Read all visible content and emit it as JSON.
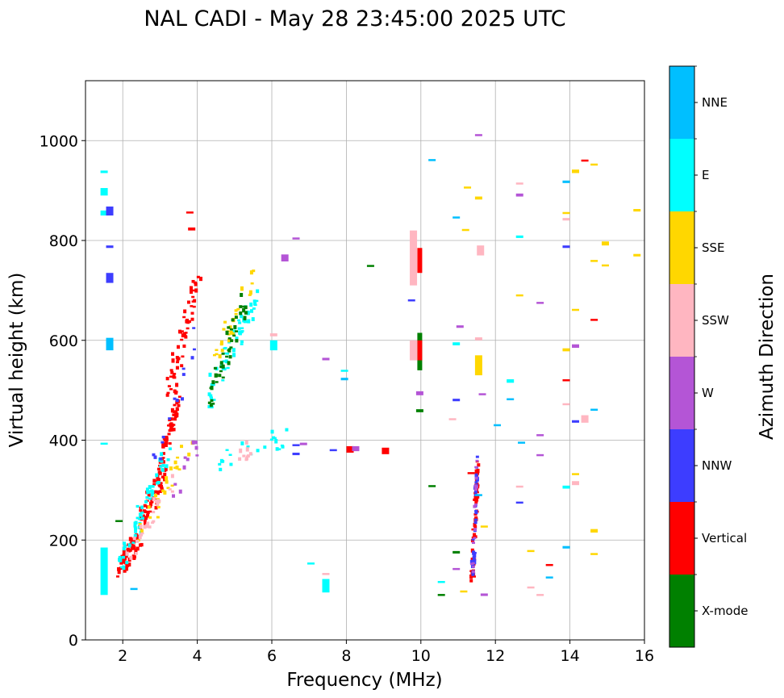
{
  "chart_data": {
    "type": "scatter",
    "title": "NAL CADI - May 28 23:45:00 2025 UTC",
    "xlabel": "Frequency (MHz)",
    "ylabel": "Virtual height (km)",
    "xlim": [
      1,
      16
    ],
    "ylim": [
      0,
      1120
    ],
    "xticks": [
      2,
      4,
      6,
      8,
      10,
      12,
      14,
      16
    ],
    "yticks": [
      0,
      200,
      400,
      600,
      800,
      1000
    ],
    "grid": true,
    "colorbar": {
      "label": "Azimuth Direction",
      "categories": [
        {
          "name": "X-mode",
          "color": "#008000"
        },
        {
          "name": "Vertical",
          "color": "#ff0000"
        },
        {
          "name": "NNW",
          "color": "#3d3dff"
        },
        {
          "name": "W",
          "color": "#b455d6"
        },
        {
          "name": "SSW",
          "color": "#ffb6c1"
        },
        {
          "name": "SSE",
          "color": "#ffd700"
        },
        {
          "name": "E",
          "color": "#00ffff"
        },
        {
          "name": "NNE",
          "color": "#00bfff"
        }
      ]
    },
    "traces": [
      {
        "category": "Vertical",
        "x": [
          1.9,
          2.5
        ],
        "y": [
          125,
          220
        ],
        "count": 60
      },
      {
        "category": "Vertical",
        "x": [
          2.5,
          3.1
        ],
        "y": [
          220,
          340
        ],
        "count": 60
      },
      {
        "category": "Vertical",
        "x": [
          3.0,
          3.5
        ],
        "y": [
          340,
          480
        ],
        "count": 50
      },
      {
        "category": "Vertical",
        "x": [
          3.3,
          4.0
        ],
        "y": [
          480,
          740
        ],
        "count": 60
      },
      {
        "category": "E",
        "x": [
          1.9,
          3.2
        ],
        "y": [
          120,
          390
        ],
        "count": 60
      },
      {
        "category": "E",
        "x": [
          4.2,
          5.6
        ],
        "y": [
          450,
          700
        ],
        "count": 60
      },
      {
        "category": "SSE",
        "x": [
          2.3,
          3.8
        ],
        "y": [
          170,
          400
        ],
        "count": 25
      },
      {
        "category": "SSE",
        "x": [
          4.4,
          5.6
        ],
        "y": [
          540,
          740
        ],
        "count": 25
      },
      {
        "category": "X-mode",
        "x": [
          4.3,
          5.3
        ],
        "y": [
          450,
          700
        ],
        "count": 45
      },
      {
        "category": "SSW",
        "x": [
          2.2,
          3.3
        ],
        "y": [
          150,
          330
        ],
        "count": 25
      },
      {
        "category": "NNW",
        "x": [
          2.8,
          4.0
        ],
        "y": [
          300,
          650
        ],
        "count": 14
      },
      {
        "category": "W",
        "x": [
          3.3,
          4.0
        ],
        "y": [
          270,
          420
        ],
        "count": 10
      },
      {
        "category": "E",
        "x": [
          4.3,
          6.6
        ],
        "y": [
          345,
          410
        ],
        "count": 22
      },
      {
        "category": "SSW",
        "x": [
          5.0,
          5.7
        ],
        "y": [
          360,
          405
        ],
        "count": 10
      },
      {
        "category": "Vertical",
        "x": [
          11.38,
          11.52
        ],
        "y": [
          90,
          370
        ],
        "count": 55
      },
      {
        "category": "NNW",
        "x": [
          11.38,
          11.52
        ],
        "y": [
          90,
          370
        ],
        "count": 30
      },
      {
        "category": "W",
        "x": [
          11.38,
          11.52
        ],
        "y": [
          90,
          370
        ],
        "count": 15
      }
    ],
    "columns": [
      {
        "category": "Vertical",
        "x": 9.97,
        "y": [
          735,
          785
        ]
      },
      {
        "category": "X-mode",
        "x": 9.97,
        "y": [
          540,
          615
        ]
      },
      {
        "category": "Vertical",
        "x": 9.97,
        "y": [
          560,
          600
        ]
      }
    ],
    "points": [
      {
        "category": "E",
        "x": 1.5,
        "y": [
          890,
          905
        ]
      },
      {
        "category": "E",
        "x": 1.5,
        "y": [
          850,
          860
        ]
      },
      {
        "category": "E",
        "x": 1.5,
        "y": [
          935,
          940
        ]
      },
      {
        "category": "NNW",
        "x": 1.65,
        "y": [
          850,
          868
        ]
      },
      {
        "category": "NNW",
        "x": 1.65,
        "y": [
          785,
          790
        ]
      },
      {
        "category": "NNW",
        "x": 1.65,
        "y": [
          715,
          735
        ]
      },
      {
        "category": "NNE",
        "x": 1.65,
        "y": [
          580,
          605
        ]
      },
      {
        "category": "E",
        "x": 1.5,
        "y": [
          90,
          185
        ]
      },
      {
        "category": "Vertical",
        "x": 3.85,
        "y": [
          820,
          826
        ]
      },
      {
        "category": "Vertical",
        "x": 3.8,
        "y": [
          855,
          858
        ]
      },
      {
        "category": "W",
        "x": 6.35,
        "y": [
          758,
          772
        ]
      },
      {
        "category": "W",
        "x": 6.65,
        "y": [
          803,
          806
        ]
      },
      {
        "category": "X-mode",
        "x": 8.65,
        "y": [
          748,
          751
        ]
      },
      {
        "category": "SSW",
        "x": 9.8,
        "y": [
          710,
          820
        ]
      },
      {
        "category": "SSW",
        "x": 9.8,
        "y": [
          560,
          600
        ]
      },
      {
        "category": "X-mode",
        "x": 9.97,
        "y": [
          456,
          462
        ]
      },
      {
        "category": "W",
        "x": 9.97,
        "y": [
          490,
          498
        ]
      },
      {
        "category": "NNE",
        "x": 10.3,
        "y": [
          960,
          963
        ]
      },
      {
        "category": "NNE",
        "x": 10.95,
        "y": [
          845,
          848
        ]
      },
      {
        "category": "SSE",
        "x": 11.2,
        "y": [
          820,
          823
        ]
      },
      {
        "category": "SSE",
        "x": 11.25,
        "y": [
          905,
          908
        ]
      },
      {
        "category": "W",
        "x": 11.55,
        "y": [
          1010,
          1013
        ]
      },
      {
        "category": "SSE",
        "x": 11.55,
        "y": [
          882,
          888
        ]
      },
      {
        "category": "SSW",
        "x": 11.6,
        "y": [
          770,
          790
        ]
      },
      {
        "category": "SSW",
        "x": 11.55,
        "y": [
          600,
          606
        ]
      },
      {
        "category": "SSE",
        "x": 11.55,
        "y": [
          530,
          570
        ]
      },
      {
        "category": "W",
        "x": 11.65,
        "y": [
          490,
          494
        ]
      },
      {
        "category": "NNE",
        "x": 12.05,
        "y": [
          428,
          432
        ]
      },
      {
        "category": "SSW",
        "x": 12.65,
        "y": [
          913,
          916
        ]
      },
      {
        "category": "W",
        "x": 12.65,
        "y": [
          888,
          894
        ]
      },
      {
        "category": "E",
        "x": 12.65,
        "y": [
          805,
          810
        ]
      },
      {
        "category": "SSE",
        "x": 12.65,
        "y": [
          688,
          692
        ]
      },
      {
        "category": "E",
        "x": 12.4,
        "y": [
          515,
          522
        ]
      },
      {
        "category": "NNE",
        "x": 12.4,
        "y": [
          480,
          484
        ]
      },
      {
        "category": "NNE",
        "x": 12.7,
        "y": [
          393,
          397
        ]
      },
      {
        "category": "NNW",
        "x": 12.65,
        "y": [
          273,
          277
        ]
      },
      {
        "category": "SSW",
        "x": 12.65,
        "y": [
          307,
          309
        ]
      },
      {
        "category": "SSE",
        "x": 12.95,
        "y": [
          176,
          180
        ]
      },
      {
        "category": "SSW",
        "x": 12.95,
        "y": [
          103,
          107
        ]
      },
      {
        "category": "SSW",
        "x": 13.2,
        "y": [
          88,
          92
        ]
      },
      {
        "category": "W",
        "x": 13.2,
        "y": [
          673,
          677
        ]
      },
      {
        "category": "W",
        "x": 13.2,
        "y": [
          408,
          412
        ]
      },
      {
        "category": "W",
        "x": 13.2,
        "y": [
          368,
          372
        ]
      },
      {
        "category": "Vertical",
        "x": 13.45,
        "y": [
          148,
          152
        ]
      },
      {
        "category": "NNE",
        "x": 13.45,
        "y": [
          123,
          127
        ]
      },
      {
        "category": "NNE",
        "x": 13.9,
        "y": [
          915,
          920
        ]
      },
      {
        "category": "SSE",
        "x": 13.9,
        "y": [
          853,
          857
        ]
      },
      {
        "category": "SSW",
        "x": 13.9,
        "y": [
          840,
          845
        ]
      },
      {
        "category": "NNW",
        "x": 13.9,
        "y": [
          785,
          790
        ]
      },
      {
        "category": "SSE",
        "x": 13.9,
        "y": [
          578,
          584
        ]
      },
      {
        "category": "Vertical",
        "x": 13.9,
        "y": [
          518,
          522
        ]
      },
      {
        "category": "SSW",
        "x": 13.9,
        "y": [
          470,
          474
        ]
      },
      {
        "category": "E",
        "x": 13.9,
        "y": [
          303,
          309
        ]
      },
      {
        "category": "NNE",
        "x": 13.9,
        "y": [
          183,
          188
        ]
      },
      {
        "category": "SSE",
        "x": 14.15,
        "y": [
          935,
          942
        ]
      },
      {
        "category": "SSE",
        "x": 14.15,
        "y": [
          660,
          663
        ]
      },
      {
        "category": "W",
        "x": 14.15,
        "y": [
          585,
          592
        ]
      },
      {
        "category": "NNW",
        "x": 14.15,
        "y": [
          435,
          440
        ]
      },
      {
        "category": "SSE",
        "x": 14.15,
        "y": [
          330,
          334
        ]
      },
      {
        "category": "SSW",
        "x": 14.15,
        "y": [
          310,
          318
        ]
      },
      {
        "category": "Vertical",
        "x": 14.4,
        "y": [
          958,
          962
        ]
      },
      {
        "category": "SSW",
        "x": 14.4,
        "y": [
          435,
          450
        ]
      },
      {
        "category": "SSE",
        "x": 14.65,
        "y": [
          950,
          954
        ]
      },
      {
        "category": "SSE",
        "x": 14.65,
        "y": [
          757,
          761
        ]
      },
      {
        "category": "Vertical",
        "x": 14.65,
        "y": [
          640,
          643
        ]
      },
      {
        "category": "NNE",
        "x": 14.65,
        "y": [
          460,
          463
        ]
      },
      {
        "category": "SSE",
        "x": 14.65,
        "y": [
          215,
          222
        ]
      },
      {
        "category": "SSE",
        "x": 14.65,
        "y": [
          170,
          174
        ]
      },
      {
        "category": "SSE",
        "x": 14.95,
        "y": [
          790,
          798
        ]
      },
      {
        "category": "SSE",
        "x": 14.95,
        "y": [
          748,
          752
        ]
      },
      {
        "category": "SSE",
        "x": 15.8,
        "y": [
          858,
          863
        ]
      },
      {
        "category": "SSE",
        "x": 15.8,
        "y": [
          768,
          773
        ]
      },
      {
        "category": "Vertical",
        "x": 9.05,
        "y": [
          372,
          385
        ]
      },
      {
        "category": "Vertical",
        "x": 8.1,
        "y": [
          375,
          388
        ]
      },
      {
        "category": "W",
        "x": 8.25,
        "y": [
          378,
          388
        ]
      },
      {
        "category": "NNW",
        "x": 7.65,
        "y": [
          378,
          382
        ]
      },
      {
        "category": "NNW",
        "x": 6.65,
        "y": [
          388,
          392
        ]
      },
      {
        "category": "NNW",
        "x": 6.65,
        "y": [
          370,
          375
        ]
      },
      {
        "category": "W",
        "x": 6.85,
        "y": [
          390,
          395
        ]
      },
      {
        "category": "W",
        "x": 7.45,
        "y": [
          560,
          565
        ]
      },
      {
        "category": "NNE",
        "x": 7.95,
        "y": [
          520,
          525
        ]
      },
      {
        "category": "E",
        "x": 7.95,
        "y": [
          538,
          541
        ]
      },
      {
        "category": "E",
        "x": 7.45,
        "y": [
          95,
          122
        ]
      },
      {
        "category": "SSW",
        "x": 7.45,
        "y": [
          130,
          134
        ]
      },
      {
        "category": "E",
        "x": 7.05,
        "y": [
          152,
          155
        ]
      },
      {
        "category": "NNW",
        "x": 10.95,
        "y": [
          478,
          483
        ]
      },
      {
        "category": "SSW",
        "x": 10.85,
        "y": [
          440,
          444
        ]
      },
      {
        "category": "E",
        "x": 10.95,
        "y": [
          590,
          596
        ]
      },
      {
        "category": "W",
        "x": 11.05,
        "y": [
          625,
          630
        ]
      },
      {
        "category": "NNW",
        "x": 9.75,
        "y": [
          680,
          682
        ]
      },
      {
        "category": "X-mode",
        "x": 10.3,
        "y": [
          306,
          310
        ]
      },
      {
        "category": "E",
        "x": 10.55,
        "y": [
          115,
          118
        ]
      },
      {
        "category": "X-mode",
        "x": 10.55,
        "y": [
          88,
          92
        ]
      },
      {
        "category": "X-mode",
        "x": 10.95,
        "y": [
          173,
          178
        ]
      },
      {
        "category": "W",
        "x": 10.95,
        "y": [
          140,
          144
        ]
      },
      {
        "category": "SSE",
        "x": 11.15,
        "y": [
          95,
          99
        ]
      },
      {
        "category": "SSE",
        "x": 11.7,
        "y": [
          225,
          229
        ]
      },
      {
        "category": "W",
        "x": 11.7,
        "y": [
          88,
          93
        ]
      },
      {
        "category": "Vertical",
        "x": 11.35,
        "y": [
          333,
          336
        ]
      },
      {
        "category": "NNE",
        "x": 11.55,
        "y": [
          288,
          292
        ]
      },
      {
        "category": "E",
        "x": 6.05,
        "y": [
          580,
          600
        ]
      },
      {
        "category": "SSW",
        "x": 6.05,
        "y": [
          608,
          614
        ]
      },
      {
        "category": "X-mode",
        "x": 1.9,
        "y": [
          236,
          240
        ]
      },
      {
        "category": "NNE",
        "x": 2.3,
        "y": [
          100,
          104
        ]
      },
      {
        "category": "E",
        "x": 1.5,
        "y": [
          392,
          395
        ]
      }
    ]
  }
}
